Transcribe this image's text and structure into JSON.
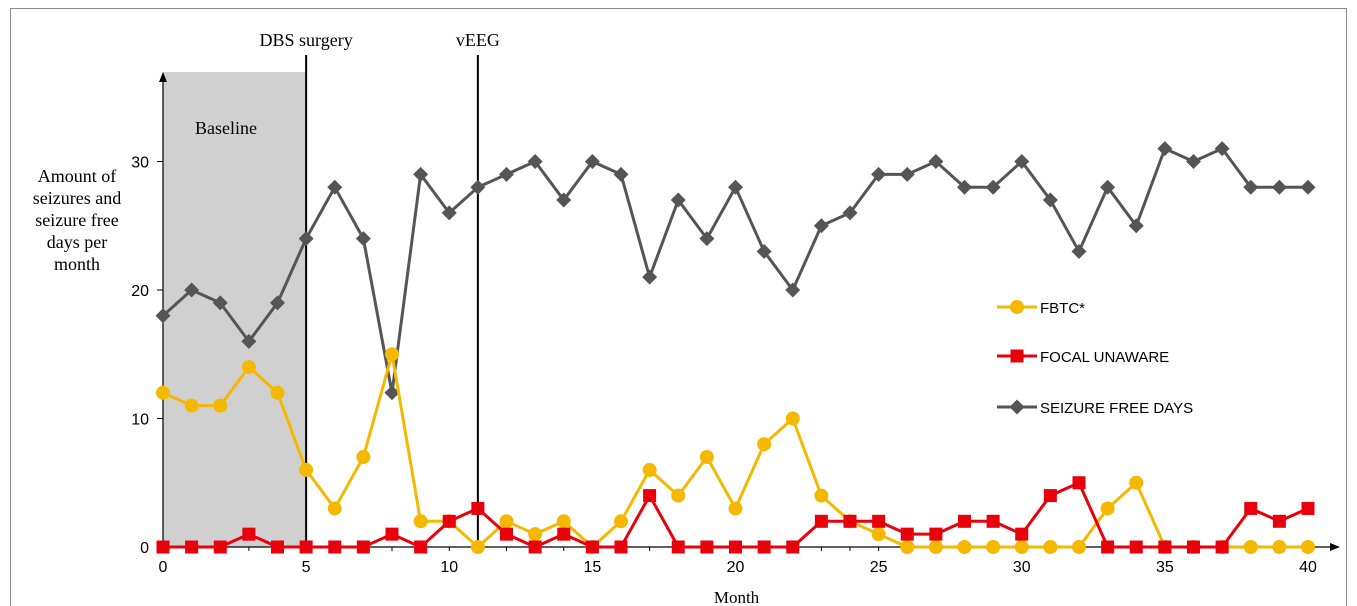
{
  "chart_data": {
    "type": "line",
    "xlabel": "Month",
    "ylabel_lines": [
      "Amount of",
      "seizures and",
      "seizure free",
      "days per",
      "month"
    ],
    "xlim": [
      0,
      40
    ],
    "ylim": [
      0,
      37
    ],
    "x_ticks": [
      0,
      5,
      10,
      15,
      20,
      25,
      30,
      35,
      40
    ],
    "y_ticks": [
      0,
      10,
      20,
      30
    ],
    "shaded_region": {
      "x_start": 0,
      "x_end": 5,
      "label": "Baseline"
    },
    "vlines": [
      {
        "x": 5,
        "label": "DBS surgery"
      },
      {
        "x": 11,
        "label": "vEEG"
      }
    ],
    "legend_position": "right",
    "series": [
      {
        "name": "FBTC*",
        "color": "#F5B800",
        "marker": "circle",
        "x": [
          0,
          1,
          2,
          3,
          4,
          5,
          6,
          7,
          8,
          9,
          10,
          11,
          12,
          13,
          14,
          15,
          16,
          17,
          18,
          19,
          20,
          21,
          22,
          23,
          24,
          25,
          26,
          27,
          28,
          29,
          30,
          31,
          32,
          33,
          34,
          35,
          36,
          37,
          38,
          39,
          40
        ],
        "values": [
          12,
          11,
          11,
          14,
          12,
          6,
          3,
          7,
          15,
          2,
          2,
          0,
          2,
          1,
          2,
          0,
          2,
          6,
          4,
          7,
          3,
          8,
          10,
          4,
          2,
          1,
          0,
          0,
          0,
          0,
          0,
          0,
          0,
          3,
          5,
          0,
          0,
          0,
          0,
          0,
          0
        ]
      },
      {
        "name": "FOCAL UNAWARE",
        "color": "#E8000B",
        "marker": "square",
        "x": [
          0,
          1,
          2,
          3,
          4,
          5,
          6,
          7,
          8,
          9,
          10,
          11,
          12,
          13,
          14,
          15,
          16,
          17,
          18,
          19,
          20,
          21,
          22,
          23,
          24,
          25,
          26,
          27,
          28,
          29,
          30,
          31,
          32,
          33,
          34,
          35,
          36,
          37,
          38,
          39,
          40
        ],
        "values": [
          0,
          0,
          0,
          1,
          0,
          0,
          0,
          0,
          1,
          0,
          2,
          3,
          1,
          0,
          1,
          0,
          0,
          4,
          0,
          0,
          0,
          0,
          0,
          2,
          2,
          2,
          1,
          1,
          2,
          2,
          1,
          4,
          5,
          0,
          0,
          0,
          0,
          0,
          3,
          2,
          3
        ]
      },
      {
        "name": "SEIZURE FREE DAYS",
        "color": "#555555",
        "marker": "diamond",
        "x": [
          0,
          1,
          2,
          3,
          4,
          5,
          6,
          7,
          8,
          9,
          10,
          11,
          12,
          13,
          14,
          15,
          16,
          17,
          18,
          19,
          20,
          21,
          22,
          23,
          24,
          25,
          26,
          27,
          28,
          29,
          30,
          31,
          32,
          33,
          34,
          35,
          36,
          37,
          38,
          39,
          40
        ],
        "values": [
          18,
          20,
          19,
          16,
          19,
          24,
          28,
          24,
          12,
          29,
          26,
          28,
          29,
          30,
          27,
          30,
          29,
          21,
          27,
          24,
          28,
          23,
          20,
          25,
          26,
          29,
          29,
          30,
          28,
          28,
          30,
          27,
          23,
          28,
          25,
          31,
          30,
          31,
          28,
          28,
          28
        ]
      }
    ]
  }
}
